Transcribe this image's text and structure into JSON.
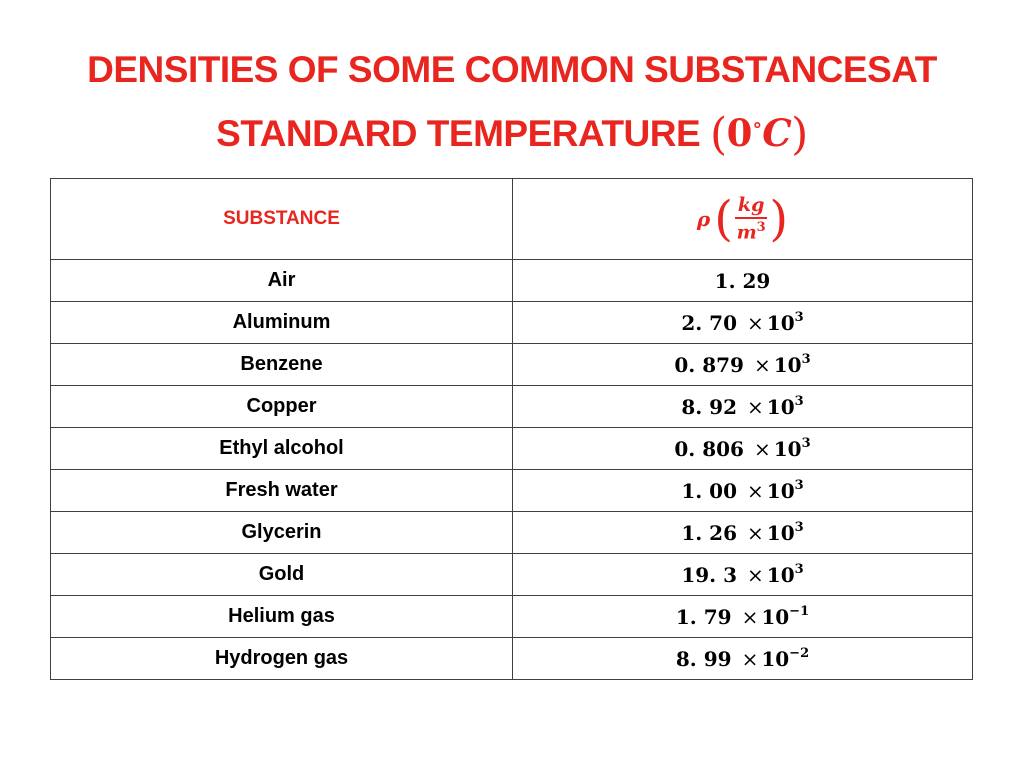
{
  "title": {
    "line1": "DENSITIES OF SOME COMMON SUBSTANCESAT",
    "line2": "STANDARD TEMPERATURE",
    "temp_value": "0",
    "temp_degree": "∘",
    "temp_unit": "C"
  },
  "table": {
    "header": {
      "substance_label": "SUBSTANCE",
      "rho_symbol": "ρ",
      "unit_numerator": "kg",
      "unit_denominator": "m",
      "unit_denominator_exp": "3"
    },
    "rows": [
      {
        "substance": "Air",
        "mantissa": "1. 29",
        "exponent": ""
      },
      {
        "substance": "Aluminum",
        "mantissa": "2. 70",
        "exponent": "3"
      },
      {
        "substance": "Benzene",
        "mantissa": "0. 879",
        "exponent": "3"
      },
      {
        "substance": "Copper",
        "mantissa": "8. 92",
        "exponent": "3"
      },
      {
        "substance": "Ethyl alcohol",
        "mantissa": "0. 806",
        "exponent": "3"
      },
      {
        "substance": "Fresh water",
        "mantissa": "1. 00",
        "exponent": "3"
      },
      {
        "substance": "Glycerin",
        "mantissa": "1. 26",
        "exponent": "3"
      },
      {
        "substance": "Gold",
        "mantissa": "19. 3",
        "exponent": "3"
      },
      {
        "substance": "Helium gas",
        "mantissa": "1. 79",
        "exponent": "−1"
      },
      {
        "substance": "Hydrogen gas",
        "mantissa": "8. 99",
        "exponent": "−2"
      }
    ],
    "times_symbol": "×",
    "base": "10"
  },
  "colors": {
    "accent": "#e8261f",
    "text": "#000000",
    "border": "#404040"
  }
}
